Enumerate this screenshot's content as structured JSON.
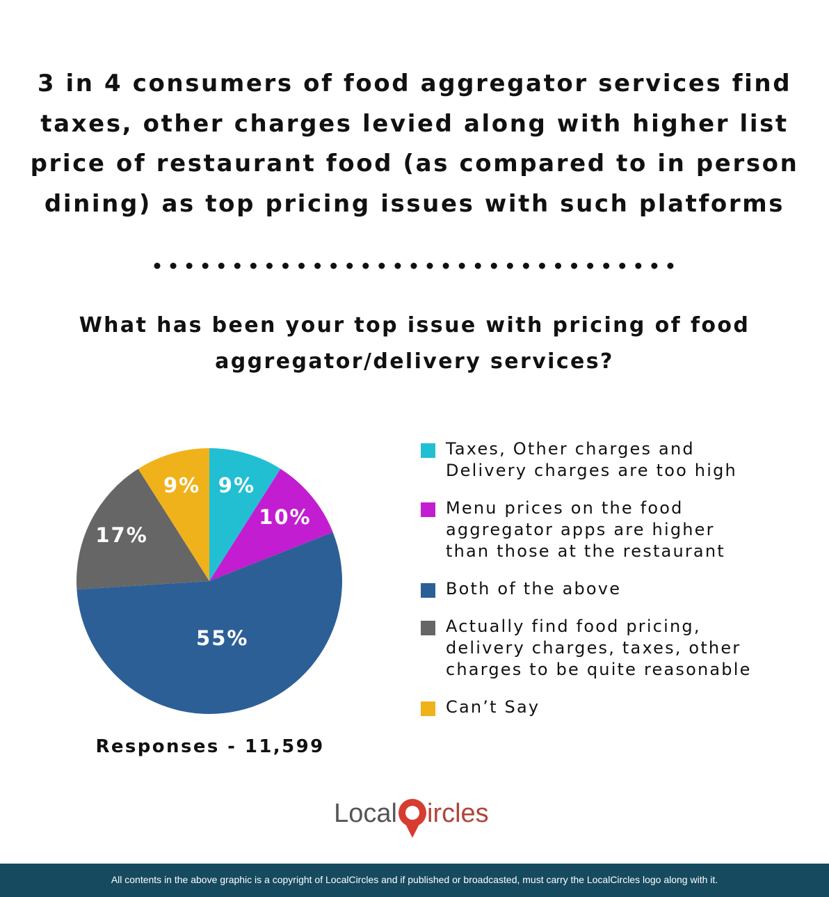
{
  "chart_data": {
    "type": "pie",
    "title": "3 in 4 consumers of food aggregator services find taxes, other charges levied along with higher list price of restaurant food (as compared to in person dining) as top pricing issues with such platforms",
    "subtitle": "What has been your top issue with pricing of food aggregator/delivery services?",
    "categories": [
      "Taxes, Other charges and Delivery charges are too high",
      "Menu prices on the food aggregator apps are higher than those at the restaurant",
      "Both of the above",
      "Actually find food pricing, delivery charges, taxes, other charges to be quite reasonable",
      "Can’t Say"
    ],
    "values": [
      9,
      10,
      55,
      17,
      9
    ],
    "value_labels": [
      "9%",
      "10%",
      "55%",
      "17%",
      "9%"
    ],
    "colors": [
      "#22bfd3",
      "#c21dd1",
      "#2d5f97",
      "#666666",
      "#f0b21b"
    ],
    "note": "Responses - 11,599"
  },
  "logo": {
    "left": "Local",
    "right": "ircles"
  },
  "footer": "All contents in the above graphic is a copyright of LocalCircles and if published or broadcasted, must carry the LocalCircles logo along with it."
}
